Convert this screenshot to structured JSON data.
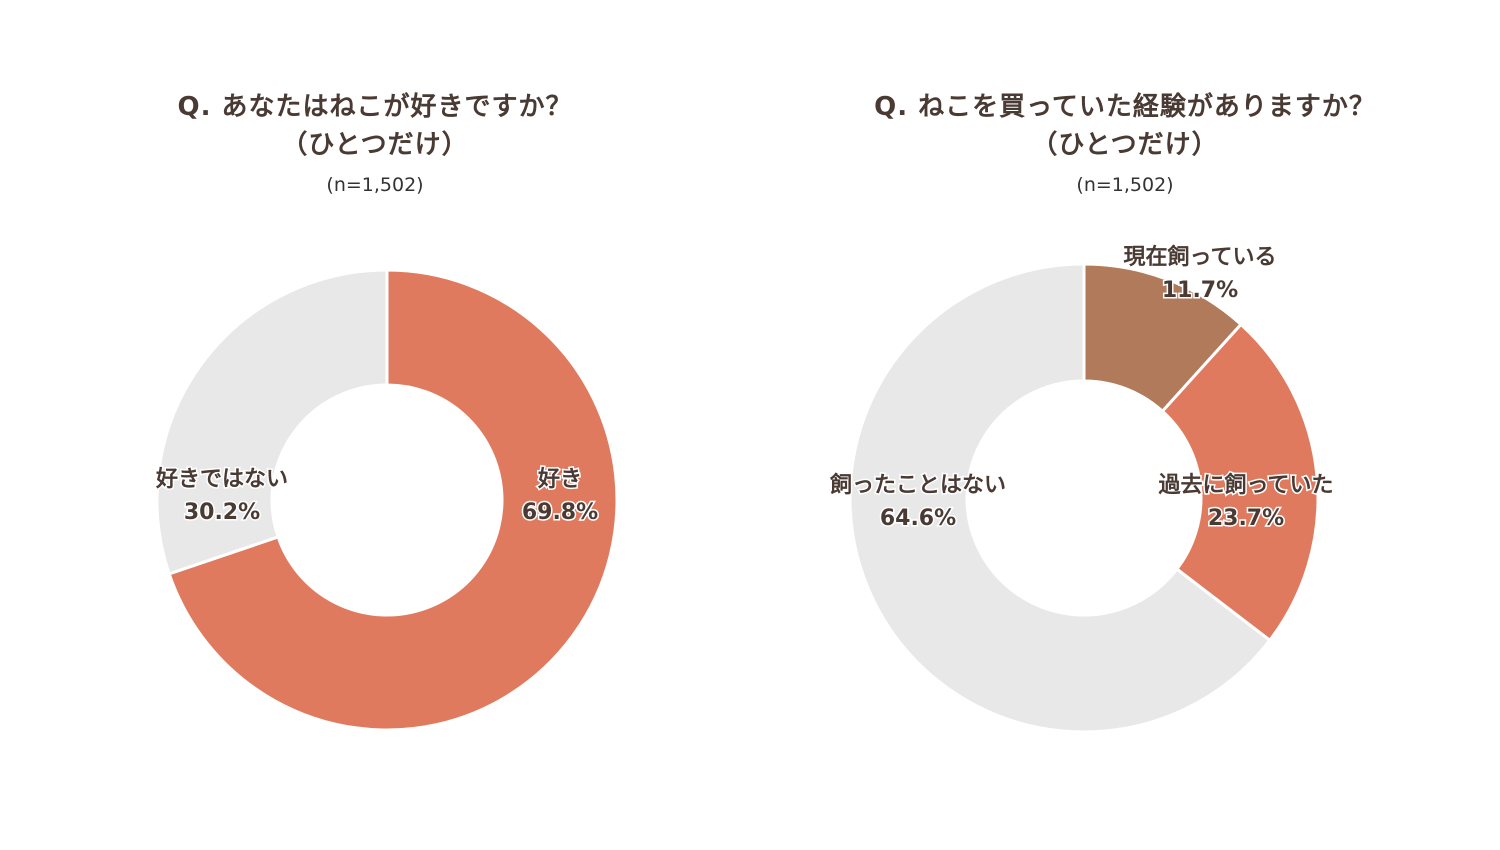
{
  "chart_data": [
    {
      "type": "pie",
      "title_line1": "Q. あなたはねこが好きですか？",
      "title_line2": "（ひとつだけ）",
      "n_label": "(n=1,502)",
      "slices": [
        {
          "label": "好き",
          "value": 69.8,
          "value_text": "69.8%",
          "color": "#e07a5f"
        },
        {
          "label": "好きではない",
          "value": 30.2,
          "value_text": "30.2%",
          "color": "#e8e8e8"
        }
      ]
    },
    {
      "type": "pie",
      "title_line1": "Q. ねこを買っていた経験がありますか？",
      "title_line2": "（ひとつだけ）",
      "n_label": "(n=1,502)",
      "slices": [
        {
          "label": "現在飼っている",
          "value": 11.7,
          "value_text": "11.7%",
          "color": "#b07a5b"
        },
        {
          "label": "過去に飼っていた",
          "value": 23.7,
          "value_text": "23.7%",
          "color": "#e07a5f"
        },
        {
          "label": "飼ったことはない",
          "value": 64.6,
          "value_text": "64.6%",
          "color": "#e8e8e8"
        }
      ]
    }
  ]
}
